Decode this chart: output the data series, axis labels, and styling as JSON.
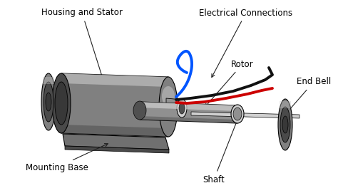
{
  "background_color": "#ffffff",
  "labels": {
    "housing_stator": "Housing and Stator",
    "electrical_connections": "Electrical Connections",
    "rotor": "Rotor",
    "end_bell": "End Bell",
    "mounting_base": "Mounting Base",
    "shaft": "Shaft"
  },
  "font_size": 8.5,
  "colors": {
    "dark_gray": "#4a4a4a",
    "medium_gray": "#808080",
    "light_gray": "#c0c0c0",
    "darker_gray": "#383838",
    "steel": "#909090",
    "steel_light": "#d0d0d0",
    "steel_dark": "#505050",
    "wire_blue": "#0055ff",
    "wire_black": "#111111",
    "wire_red": "#cc0000",
    "ann_line": "#222222",
    "white": "#ffffff",
    "edge": "#000000",
    "base_color": "#707070"
  }
}
